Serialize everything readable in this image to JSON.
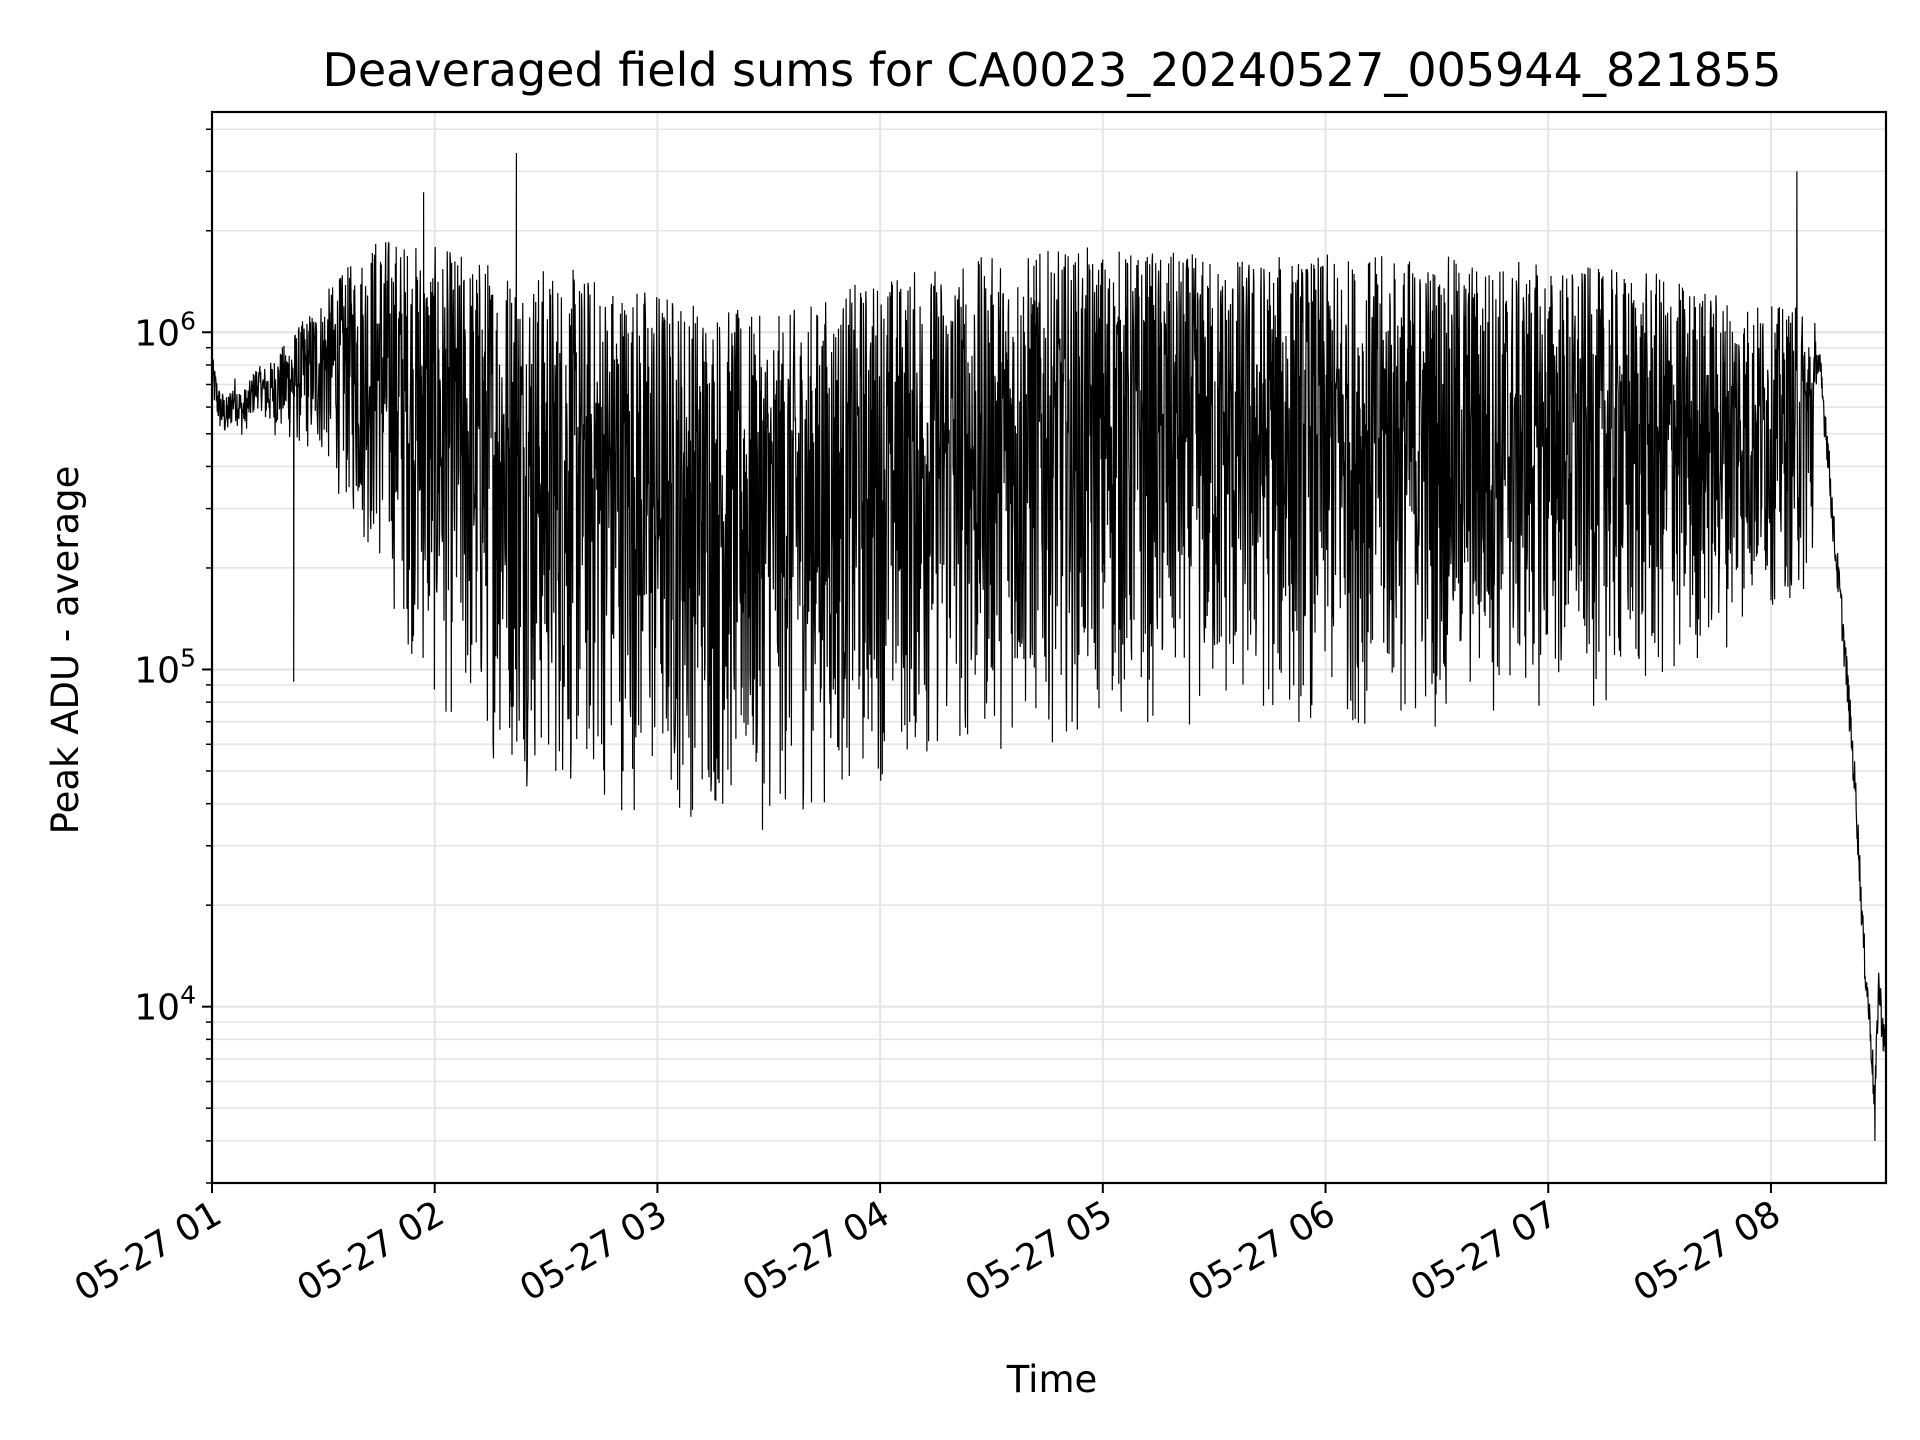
{
  "chart_data": {
    "type": "line",
    "title": "Deaveraged field sums for CA0023_20240527_005944_821855",
    "xlabel": "Time",
    "ylabel": "Peak ADU - average",
    "x_scale": "time",
    "y_scale": "log",
    "xlim": [
      "2024-05-27T01:00",
      "2024-05-27T08:31"
    ],
    "ylim": [
      3000,
      4500000
    ],
    "grid": true,
    "line_color": "#000000",
    "grid_color": "#e5e5e5",
    "x_ticks": [
      {
        "value": "2024-05-27T01:00",
        "label": "05-27 01"
      },
      {
        "value": "2024-05-27T02:00",
        "label": "05-27 02"
      },
      {
        "value": "2024-05-27T03:00",
        "label": "05-27 03"
      },
      {
        "value": "2024-05-27T04:00",
        "label": "05-27 04"
      },
      {
        "value": "2024-05-27T05:00",
        "label": "05-27 05"
      },
      {
        "value": "2024-05-27T06:00",
        "label": "05-27 06"
      },
      {
        "value": "2024-05-27T07:00",
        "label": "05-27 07"
      },
      {
        "value": "2024-05-27T08:00",
        "label": "05-27 08"
      }
    ],
    "y_ticks": [
      {
        "value": 10000,
        "base": "10",
        "exp": "4"
      },
      {
        "value": 100000,
        "base": "10",
        "exp": "5"
      },
      {
        "value": 1000000,
        "base": "10",
        "exp": "6"
      }
    ],
    "series": [
      {
        "values_note_units": "Peak ADU - average",
        "points": [
          [
            "2024-05-27T01:00",
            750000
          ],
          [
            "2024-05-27T01:02",
            600000
          ],
          [
            "2024-05-27T01:04",
            560000
          ],
          [
            "2024-05-27T01:06",
            650000
          ],
          [
            "2024-05-27T01:08",
            580000
          ],
          [
            "2024-05-27T01:10",
            620000
          ],
          [
            "2024-05-27T01:12",
            700000
          ],
          [
            "2024-05-27T01:14",
            680000
          ],
          [
            "2024-05-27T01:16",
            850000
          ],
          [
            "2024-05-27T01:18",
            950000
          ],
          [
            "2024-05-27T01:20",
            1100000
          ],
          [
            "2024-05-27T01:22",
            1050000
          ],
          [
            "2024-05-27T01:24",
            1000000
          ],
          [
            "2024-05-27T01:26",
            800000
          ],
          [
            "2024-05-27T01:28",
            600000
          ],
          [
            "2024-05-27T01:30",
            800000
          ],
          [
            "2024-05-27T01:35",
            1000000
          ],
          [
            "2024-05-27T01:40",
            1300000
          ],
          [
            "2024-05-27T01:45",
            1600000
          ],
          [
            "2024-05-27T01:50",
            1400000
          ],
          [
            "2024-05-27T02:00",
            1100000
          ],
          [
            "2024-05-27T02:10",
            600000
          ],
          [
            "2024-05-27T02:20",
            500000
          ],
          [
            "2024-05-27T02:40",
            300000
          ],
          [
            "2024-05-27T03:00",
            200000
          ],
          [
            "2024-05-27T03:20",
            150000
          ],
          [
            "2024-05-27T03:40",
            140000
          ],
          [
            "2024-05-27T04:00",
            200000
          ],
          [
            "2024-05-27T04:30",
            300000
          ],
          [
            "2024-05-27T05:00",
            350000
          ],
          [
            "2024-05-27T05:30",
            400000
          ],
          [
            "2024-05-27T06:00",
            400000
          ],
          [
            "2024-05-27T06:30",
            450000
          ],
          [
            "2024-05-27T07:00",
            420000
          ],
          [
            "2024-05-27T07:30",
            400000
          ],
          [
            "2024-05-27T08:00",
            450000
          ],
          [
            "2024-05-27T08:05",
            700000
          ],
          [
            "2024-05-27T08:10",
            900000
          ],
          [
            "2024-05-27T08:13",
            800000
          ],
          [
            "2024-05-27T08:15",
            500000
          ],
          [
            "2024-05-27T08:17",
            250000
          ],
          [
            "2024-05-27T08:19",
            150000
          ],
          [
            "2024-05-27T08:21",
            80000
          ],
          [
            "2024-05-27T08:23",
            40000
          ],
          [
            "2024-05-27T08:25",
            15000
          ],
          [
            "2024-05-27T08:27",
            8000
          ],
          [
            "2024-05-27T08:28",
            5000
          ],
          [
            "2024-05-27T08:29",
            12000
          ],
          [
            "2024-05-27T08:30",
            9000
          ],
          [
            "2024-05-27T08:31",
            7000
          ]
        ],
        "envelope": [
          {
            "x": "2024-05-27T01:15",
            "max": 800000,
            "min": 500000
          },
          {
            "x": "2024-05-27T01:30",
            "max": 1300000,
            "min": 400000
          },
          {
            "x": "2024-05-27T01:45",
            "max": 2000000,
            "min": 180000
          },
          {
            "x": "2024-05-27T02:00",
            "max": 1800000,
            "min": 70000
          },
          {
            "x": "2024-05-27T02:30",
            "max": 1600000,
            "min": 40000
          },
          {
            "x": "2024-05-27T03:00",
            "max": 1400000,
            "min": 35000
          },
          {
            "x": "2024-05-27T03:30",
            "max": 1100000,
            "min": 32000
          },
          {
            "x": "2024-05-27T04:00",
            "max": 1500000,
            "min": 45000
          },
          {
            "x": "2024-05-27T04:30",
            "max": 1700000,
            "min": 55000
          },
          {
            "x": "2024-05-27T05:00",
            "max": 1800000,
            "min": 65000
          },
          {
            "x": "2024-05-27T05:30",
            "max": 1700000,
            "min": 65000
          },
          {
            "x": "2024-05-27T06:00",
            "max": 1700000,
            "min": 65000
          },
          {
            "x": "2024-05-27T06:30",
            "max": 1700000,
            "min": 65000
          },
          {
            "x": "2024-05-27T07:00",
            "max": 1600000,
            "min": 75000
          },
          {
            "x": "2024-05-27T07:30",
            "max": 1500000,
            "min": 75000
          },
          {
            "x": "2024-05-27T08:00",
            "max": 1200000,
            "min": 150000
          }
        ],
        "spikes": [
          {
            "x": "2024-05-27T01:22",
            "value": 92000
          },
          {
            "x": "2024-05-27T02:22",
            "value": 3400000
          },
          {
            "x": "2024-05-27T01:57",
            "value": 2600000
          },
          {
            "x": "2024-05-27T08:07",
            "value": 3000000
          },
          {
            "x": "2024-05-27T08:28",
            "value": 4000
          }
        ]
      }
    ]
  }
}
